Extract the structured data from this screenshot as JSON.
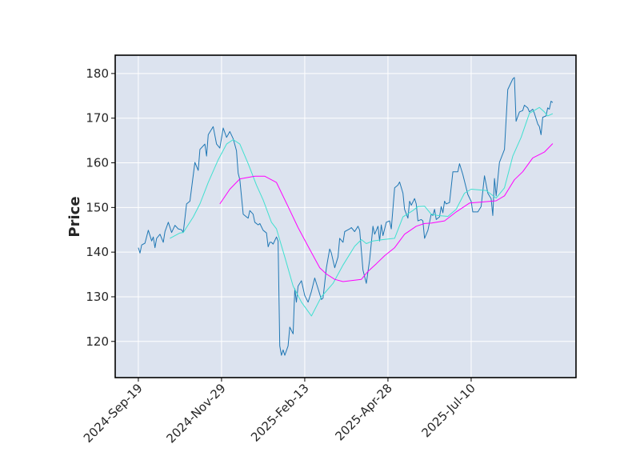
{
  "chart_data": {
    "type": "line",
    "title": "",
    "xlabel": "",
    "ylabel": "Price",
    "ylim": [
      111.9,
      184.1
    ],
    "xlim_index": [
      -13.9,
      263
    ],
    "grid": true,
    "legend": "none",
    "background_color": "#dce3ef",
    "y_ticks": [
      120,
      130,
      140,
      150,
      160,
      170,
      180
    ],
    "x_ticks": [
      {
        "index": 0,
        "label": "2024-Sep-19"
      },
      {
        "index": 50,
        "label": "2024-Nov-29"
      },
      {
        "index": 100,
        "label": "2025-Feb-13"
      },
      {
        "index": 150,
        "label": "2025-Apr-28"
      },
      {
        "index": 200,
        "label": "2025-Jul-10"
      }
    ],
    "series": [
      {
        "role": "close",
        "color": "#1f77b4",
        "points": [
          [
            0,
            141.0
          ],
          [
            1,
            139.8
          ],
          [
            2,
            141.6
          ],
          [
            4,
            142.0
          ],
          [
            6,
            144.9
          ],
          [
            8,
            142.5
          ],
          [
            9,
            143.4
          ],
          [
            10,
            141.0
          ],
          [
            11,
            143.1
          ],
          [
            13,
            144.0
          ],
          [
            15,
            142.2
          ],
          [
            16,
            144.6
          ],
          [
            18,
            146.7
          ],
          [
            20,
            144.4
          ],
          [
            22,
            146.0
          ],
          [
            24,
            145.2
          ],
          [
            26,
            145.0
          ],
          [
            27,
            144.4
          ],
          [
            29,
            150.8
          ],
          [
            31,
            151.4
          ],
          [
            34,
            160.1
          ],
          [
            36,
            158.3
          ],
          [
            37,
            163.0
          ],
          [
            40,
            164.2
          ],
          [
            41,
            161.5
          ],
          [
            42,
            166.3
          ],
          [
            45,
            168.1
          ],
          [
            47,
            164.2
          ],
          [
            49,
            163.3
          ],
          [
            51,
            167.8
          ],
          [
            53,
            165.7
          ],
          [
            55,
            167.0
          ],
          [
            57,
            165.4
          ],
          [
            59,
            162.7
          ],
          [
            60,
            157.7
          ],
          [
            61,
            156.2
          ],
          [
            63,
            148.5
          ],
          [
            65,
            147.9
          ],
          [
            66,
            147.6
          ],
          [
            67,
            149.3
          ],
          [
            69,
            148.5
          ],
          [
            70,
            146.7
          ],
          [
            72,
            146.1
          ],
          [
            73,
            146.4
          ],
          [
            75,
            144.9
          ],
          [
            77,
            144.3
          ],
          [
            78,
            141.2
          ],
          [
            79,
            142.2
          ],
          [
            80,
            142.2
          ],
          [
            81,
            141.8
          ],
          [
            83,
            143.4
          ],
          [
            84,
            142.5
          ],
          [
            85,
            119.0
          ],
          [
            86,
            116.9
          ],
          [
            87,
            118.1
          ],
          [
            88,
            116.9
          ],
          [
            90,
            119.0
          ],
          [
            91,
            123.2
          ],
          [
            93,
            121.7
          ],
          [
            94,
            131.8
          ],
          [
            95,
            128.8
          ],
          [
            96,
            132.4
          ],
          [
            98,
            133.6
          ],
          [
            100,
            130.3
          ],
          [
            102,
            128.8
          ],
          [
            104,
            131.2
          ],
          [
            106,
            134.2
          ],
          [
            108,
            131.8
          ],
          [
            110,
            129.4
          ],
          [
            111,
            129.7
          ],
          [
            113,
            136.5
          ],
          [
            115,
            140.7
          ],
          [
            116,
            139.8
          ],
          [
            118,
            136.5
          ],
          [
            120,
            138.9
          ],
          [
            121,
            143.1
          ],
          [
            123,
            142.2
          ],
          [
            124,
            144.6
          ],
          [
            127,
            145.2
          ],
          [
            128,
            145.5
          ],
          [
            130,
            144.6
          ],
          [
            132,
            145.8
          ],
          [
            133,
            144.9
          ],
          [
            135,
            136.0
          ],
          [
            137,
            133.0
          ],
          [
            139,
            138.3
          ],
          [
            141,
            145.8
          ],
          [
            142,
            144.0
          ],
          [
            144,
            145.8
          ],
          [
            145,
            142.5
          ],
          [
            146,
            146.1
          ],
          [
            147,
            143.7
          ],
          [
            149,
            146.7
          ],
          [
            151,
            147.0
          ],
          [
            152,
            145.2
          ],
          [
            154,
            154.4
          ],
          [
            156,
            155.0
          ],
          [
            157,
            155.7
          ],
          [
            159,
            153.2
          ],
          [
            160,
            149.6
          ],
          [
            162,
            147.6
          ],
          [
            163,
            151.4
          ],
          [
            164,
            150.5
          ],
          [
            166,
            152.0
          ],
          [
            167,
            150.8
          ],
          [
            168,
            147.0
          ],
          [
            170,
            147.3
          ],
          [
            171,
            147.0
          ],
          [
            172,
            143.1
          ],
          [
            174,
            144.9
          ],
          [
            176,
            148.5
          ],
          [
            177,
            148.2
          ],
          [
            178,
            149.6
          ],
          [
            179,
            147.3
          ],
          [
            181,
            147.9
          ],
          [
            182,
            150.2
          ],
          [
            183,
            148.8
          ],
          [
            184,
            151.4
          ],
          [
            185,
            150.8
          ],
          [
            187,
            151.1
          ],
          [
            189,
            158.0
          ],
          [
            192,
            158.0
          ],
          [
            193,
            159.8
          ],
          [
            195,
            157.4
          ],
          [
            198,
            152.9
          ],
          [
            200,
            151.4
          ],
          [
            201,
            149.0
          ],
          [
            204,
            149.0
          ],
          [
            206,
            150.2
          ],
          [
            208,
            157.1
          ],
          [
            210,
            153.2
          ],
          [
            212,
            152.0
          ],
          [
            213,
            148.2
          ],
          [
            214,
            156.5
          ],
          [
            215,
            152.6
          ],
          [
            217,
            160.1
          ],
          [
            220,
            163.0
          ],
          [
            222,
            176.4
          ],
          [
            225,
            178.8
          ],
          [
            226,
            179.1
          ],
          [
            227,
            169.3
          ],
          [
            229,
            171.4
          ],
          [
            231,
            171.7
          ],
          [
            232,
            172.9
          ],
          [
            234,
            172.3
          ],
          [
            235,
            171.4
          ],
          [
            237,
            172.0
          ],
          [
            238,
            171.1
          ],
          [
            240,
            168.7
          ],
          [
            241,
            168.1
          ],
          [
            242,
            166.3
          ],
          [
            243,
            170.2
          ],
          [
            245,
            170.5
          ],
          [
            246,
            172.3
          ],
          [
            247,
            172.0
          ],
          [
            248,
            173.8
          ],
          [
            249,
            173.5
          ]
        ]
      },
      {
        "role": "moving-average-short",
        "color": "#40e0d0",
        "points": [
          [
            19,
            143.1
          ],
          [
            25,
            144.3
          ],
          [
            27,
            144.4
          ],
          [
            33,
            147.9
          ],
          [
            37,
            150.8
          ],
          [
            42,
            155.6
          ],
          [
            48,
            160.7
          ],
          [
            53,
            164.2
          ],
          [
            57,
            165.2
          ],
          [
            61,
            164.2
          ],
          [
            66,
            159.8
          ],
          [
            71,
            155.0
          ],
          [
            75,
            151.7
          ],
          [
            80,
            146.7
          ],
          [
            83,
            145.2
          ],
          [
            88,
            138.9
          ],
          [
            93,
            132.4
          ],
          [
            98,
            128.8
          ],
          [
            104,
            125.7
          ],
          [
            110,
            130.0
          ],
          [
            117,
            133.0
          ],
          [
            123,
            137.1
          ],
          [
            130,
            141.3
          ],
          [
            134,
            142.8
          ],
          [
            137,
            141.9
          ],
          [
            141,
            142.5
          ],
          [
            147,
            142.8
          ],
          [
            154,
            143.1
          ],
          [
            159,
            147.9
          ],
          [
            165,
            149.3
          ],
          [
            168,
            150.2
          ],
          [
            172,
            150.3
          ],
          [
            176,
            148.5
          ],
          [
            180,
            148.2
          ],
          [
            186,
            148.0
          ],
          [
            191,
            149.6
          ],
          [
            196,
            153.2
          ],
          [
            200,
            154.1
          ],
          [
            209,
            153.8
          ],
          [
            215,
            152.1
          ],
          [
            220,
            154.4
          ],
          [
            225,
            161.5
          ],
          [
            230,
            165.7
          ],
          [
            235,
            171.1
          ],
          [
            241,
            172.4
          ],
          [
            244,
            171.4
          ],
          [
            246,
            170.5
          ],
          [
            249,
            171.0
          ]
        ]
      },
      {
        "role": "moving-average-long",
        "color": "#ff00ff",
        "points": [
          [
            49,
            150.8
          ],
          [
            55,
            154.1
          ],
          [
            61,
            156.4
          ],
          [
            70,
            157.0
          ],
          [
            76,
            157.0
          ],
          [
            83,
            155.6
          ],
          [
            90,
            150.2
          ],
          [
            96,
            145.5
          ],
          [
            102,
            141.3
          ],
          [
            109,
            136.5
          ],
          [
            113,
            135.1
          ],
          [
            118,
            133.9
          ],
          [
            123,
            133.4
          ],
          [
            130,
            133.7
          ],
          [
            134,
            133.9
          ],
          [
            138,
            135.7
          ],
          [
            143,
            137.4
          ],
          [
            148,
            139.2
          ],
          [
            154,
            141.0
          ],
          [
            160,
            144.0
          ],
          [
            167,
            145.8
          ],
          [
            172,
            146.4
          ],
          [
            176,
            146.5
          ],
          [
            184,
            147.0
          ],
          [
            191,
            149.0
          ],
          [
            199,
            151.0
          ],
          [
            206,
            151.2
          ],
          [
            215,
            151.5
          ],
          [
            220,
            152.6
          ],
          [
            226,
            156.2
          ],
          [
            231,
            158.0
          ],
          [
            237,
            161.1
          ],
          [
            244,
            162.4
          ],
          [
            249,
            164.3
          ]
        ]
      }
    ]
  }
}
